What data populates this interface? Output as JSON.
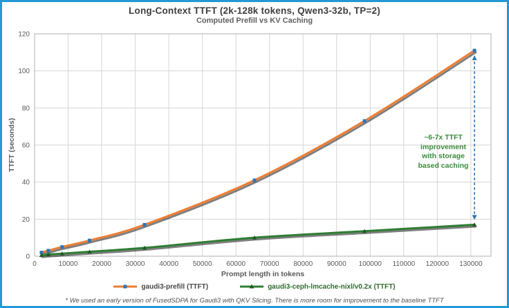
{
  "header": {
    "title": "Long-Context TTFT (2k-128k tokens, Qwen3-32b, TP=2)",
    "subtitle": "Computed Prefill vs KV Caching"
  },
  "chart_data": {
    "type": "line",
    "title": "Long-Context TTFT (2k-128k tokens, Qwen3-32b, TP=2)",
    "subtitle": "Computed Prefill vs KV Caching",
    "xlabel": "Prompt length in tokens",
    "ylabel": "TTFT (seconds)",
    "xlim": [
      0,
      136000
    ],
    "ylim": [
      0,
      120
    ],
    "x_ticks": [
      0,
      10000,
      20000,
      30000,
      40000,
      50000,
      60000,
      70000,
      80000,
      90000,
      100000,
      110000,
      120000,
      130000
    ],
    "y_ticks": [
      0,
      20,
      40,
      60,
      80,
      100,
      120
    ],
    "grid": true,
    "legend_position": "bottom",
    "grid_color": "#d6d6d6",
    "axis_border_color": "#bdbdbd",
    "tick_label_color": "#595959",
    "x": [
      2048,
      4096,
      8192,
      16384,
      32768,
      65536,
      98304,
      131072
    ],
    "series": [
      {
        "name": "gaudi3-prefill (TTFT)",
        "color": "#ED7D31",
        "marker": "square",
        "marker_color": "#2E75B6",
        "label_color": "#474747",
        "values": [
          2,
          3,
          5,
          8.5,
          17,
          41,
          73,
          111
        ]
      },
      {
        "name": "gaudi3-ceph-lmcache-nixl/v0.2x (TTFT)",
        "color": "#2F7D32",
        "marker": "triangle",
        "marker_color": "#1D5A21",
        "label_color": "#2F6B2F",
        "values": [
          0.5,
          0.9,
          1.4,
          2.4,
          4.5,
          10,
          13.5,
          17
        ]
      }
    ],
    "annotation": {
      "text": "~6-7x TTFT\nimprovement\nwith storage\nbased caching",
      "color": "#3c8a3c",
      "arrow": {
        "x": 131072,
        "from_value": 111,
        "to_value": 17,
        "color": "#2E75B6",
        "style": "dashed"
      }
    }
  },
  "footnote": {
    "text": "* We used an early version of FusedSDPA for Gaudi3 with QKV Slicing.  There is more room for improvement to the baseline TTFT"
  },
  "frame": {
    "border_color": "#2398d5",
    "background": "#ffffff"
  }
}
